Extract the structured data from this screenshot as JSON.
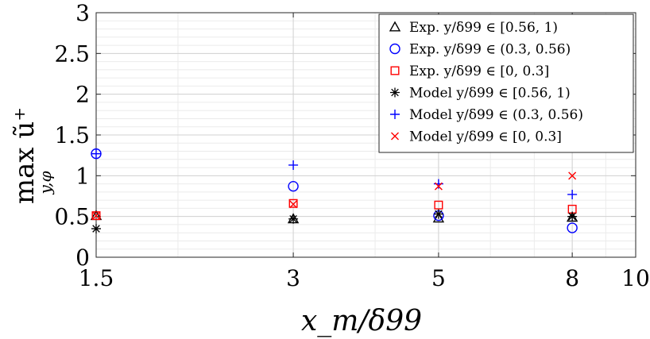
{
  "chart_data": {
    "type": "scatter",
    "xlabel": "x_m/δ99",
    "ylabel_main": "max ũ⁺",
    "ylabel_sub": "y,φ",
    "xlim": [
      1.5,
      10
    ],
    "ylim": [
      0,
      3
    ],
    "xticks": [
      1.5,
      3,
      5,
      8,
      10
    ],
    "xtick_labels": [
      "1.5",
      "3",
      "5",
      "8",
      "10"
    ],
    "yticks": [
      0,
      0.5,
      1,
      1.5,
      2,
      2.5,
      3
    ],
    "ytick_labels": [
      "0",
      "0.5",
      "1",
      "1.5",
      "2",
      "2.5",
      "3"
    ],
    "grid": true,
    "minor_grid": true,
    "legend_position": "top-right",
    "series": [
      {
        "name": "Exp. y/δ99 ∈ [0.56, 1)",
        "marker": "triangle",
        "color": "#000000",
        "x": [
          1.5,
          3,
          5,
          8
        ],
        "y": [
          0.51,
          0.47,
          0.48,
          0.49
        ]
      },
      {
        "name": "Exp. y/δ99 ∈ (0.3, 0.56)",
        "marker": "circle",
        "color": "#0000ff",
        "x": [
          1.5,
          3,
          5,
          8
        ],
        "y": [
          1.27,
          0.87,
          0.51,
          0.36
        ]
      },
      {
        "name": "Exp. y/δ99 ∈ [0, 0.3]",
        "marker": "square",
        "color": "#ff0000",
        "x": [
          1.5,
          3,
          5,
          8
        ],
        "y": [
          0.51,
          0.66,
          0.64,
          0.59
        ]
      },
      {
        "name": "Model y/δ99 ∈ [0.56, 1)",
        "marker": "asterisk",
        "color": "#000000",
        "x": [
          1.5,
          3,
          5,
          8
        ],
        "y": [
          0.35,
          0.47,
          0.53,
          0.5
        ]
      },
      {
        "name": "Model y/δ99 ∈ (0.3, 0.56)",
        "marker": "plus",
        "color": "#0000ff",
        "x": [
          1.5,
          3,
          5,
          8
        ],
        "y": [
          1.27,
          1.13,
          0.9,
          0.77
        ]
      },
      {
        "name": "Model y/δ99 ∈ [0, 0.3]",
        "marker": "cross",
        "color": "#ff0000",
        "x": [
          1.5,
          3,
          5,
          8
        ],
        "y": [
          0.51,
          0.65,
          0.87,
          1.0
        ]
      }
    ]
  }
}
